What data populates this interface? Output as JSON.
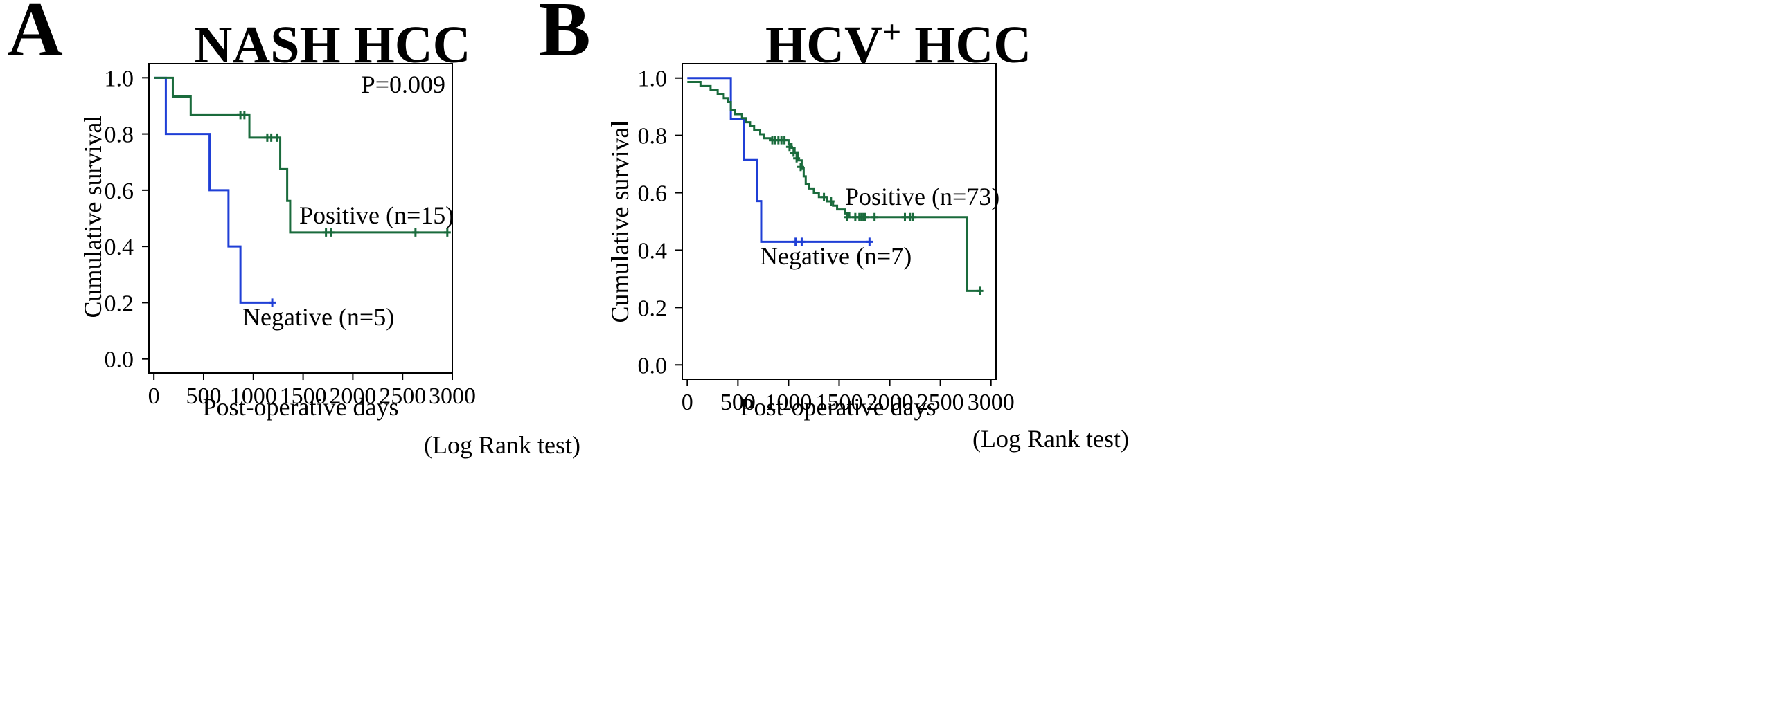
{
  "footnote": "(Log Rank test)",
  "colors": {
    "negative": "#1f3fd6",
    "positive": "#1a6b3c"
  },
  "chart_data": [
    {
      "type": "line",
      "panel_label": "A",
      "title": "NASH HCC",
      "title_superscript": "",
      "title_suffix": "",
      "xlabel": "Post-operative days",
      "ylabel": "Cumulative survival",
      "xlim": [
        -50,
        3000
      ],
      "ylim": [
        -0.05,
        1.05
      ],
      "xticks": [
        0,
        500,
        1000,
        1500,
        2000,
        2500,
        3000
      ],
      "yticks": [
        "0.0",
        "0.2",
        "0.4",
        "0.6",
        "0.8",
        "1.0"
      ],
      "pvalue": "P=0.009",
      "footnote": "(Log Rank test)",
      "series": [
        {
          "name": "Negative (n=5)",
          "color": "#1f3fd6",
          "steps": [
            [
              0,
              1.0
            ],
            [
              120,
              0.8
            ],
            [
              560,
              0.6
            ],
            [
              750,
              0.4
            ],
            [
              870,
              0.2
            ],
            [
              1190,
              0.2
            ]
          ],
          "censored": [
            [
              1190,
              0.2
            ]
          ]
        },
        {
          "name": "Positive (n=15)",
          "color": "#1a6b3c",
          "steps": [
            [
              0,
              1.0
            ],
            [
              190,
              0.933
            ],
            [
              370,
              0.867
            ],
            [
              960,
              0.787
            ],
            [
              1270,
              0.675
            ],
            [
              1340,
              0.562
            ],
            [
              1370,
              0.45
            ],
            [
              2950,
              0.45
            ]
          ],
          "censored": [
            [
              870,
              0.867
            ],
            [
              910,
              0.867
            ],
            [
              1140,
              0.787
            ],
            [
              1180,
              0.787
            ],
            [
              1240,
              0.787
            ],
            [
              1730,
              0.45
            ],
            [
              1780,
              0.45
            ],
            [
              2630,
              0.45
            ],
            [
              2950,
              0.45
            ]
          ]
        }
      ]
    },
    {
      "type": "line",
      "panel_label": "B",
      "title": "HCV",
      "title_superscript": "+",
      "title_suffix": " HCC",
      "xlabel": "Post-operative days",
      "ylabel": "Cumulative survival",
      "xlim": [
        -50,
        3050
      ],
      "ylim": [
        -0.05,
        1.05
      ],
      "xticks": [
        0,
        500,
        1000,
        1500,
        2000,
        2500,
        3000
      ],
      "yticks": [
        "0.0",
        "0.2",
        "0.4",
        "0.6",
        "0.8",
        "1.0"
      ],
      "pvalue": "",
      "footnote": "(Log Rank test)",
      "series": [
        {
          "name": "Negative (n=7)",
          "color": "#1f3fd6",
          "steps": [
            [
              0,
              1.0
            ],
            [
              430,
              0.857
            ],
            [
              560,
              0.714
            ],
            [
              690,
              0.571
            ],
            [
              730,
              0.429
            ],
            [
              1800,
              0.429
            ]
          ],
          "censored": [
            [
              1070,
              0.429
            ],
            [
              1130,
              0.429
            ],
            [
              1800,
              0.429
            ]
          ]
        },
        {
          "name": "Positive (n=73)",
          "color": "#1a6b3c",
          "steps": [
            [
              0,
              0.986
            ],
            [
              130,
              0.972
            ],
            [
              230,
              0.958
            ],
            [
              300,
              0.944
            ],
            [
              360,
              0.93
            ],
            [
              400,
              0.916
            ],
            [
              430,
              0.888
            ],
            [
              470,
              0.874
            ],
            [
              540,
              0.86
            ],
            [
              580,
              0.846
            ],
            [
              620,
              0.832
            ],
            [
              660,
              0.818
            ],
            [
              720,
              0.804
            ],
            [
              760,
              0.79
            ],
            [
              820,
              0.783
            ],
            [
              1000,
              0.769
            ],
            [
              1030,
              0.755
            ],
            [
              1060,
              0.741
            ],
            [
              1090,
              0.713
            ],
            [
              1130,
              0.685
            ],
            [
              1150,
              0.657
            ],
            [
              1170,
              0.63
            ],
            [
              1200,
              0.615
            ],
            [
              1250,
              0.6
            ],
            [
              1300,
              0.585
            ],
            [
              1380,
              0.57
            ],
            [
              1440,
              0.555
            ],
            [
              1480,
              0.542
            ],
            [
              1560,
              0.528
            ],
            [
              1600,
              0.515
            ],
            [
              2750,
              0.515
            ],
            [
              2760,
              0.258
            ],
            [
              2890,
              0.258
            ]
          ],
          "censored": [
            [
              840,
              0.783
            ],
            [
              870,
              0.783
            ],
            [
              900,
              0.783
            ],
            [
              930,
              0.783
            ],
            [
              960,
              0.783
            ],
            [
              1010,
              0.76
            ],
            [
              1050,
              0.74
            ],
            [
              1080,
              0.72
            ],
            [
              1120,
              0.69
            ],
            [
              1350,
              0.585
            ],
            [
              1420,
              0.57
            ],
            [
              1580,
              0.515
            ],
            [
              1660,
              0.515
            ],
            [
              1700,
              0.515
            ],
            [
              1720,
              0.515
            ],
            [
              1740,
              0.515
            ],
            [
              1760,
              0.515
            ],
            [
              1850,
              0.515
            ],
            [
              2150,
              0.515
            ],
            [
              2200,
              0.515
            ],
            [
              2230,
              0.515
            ],
            [
              2890,
              0.258
            ]
          ]
        }
      ]
    }
  ]
}
